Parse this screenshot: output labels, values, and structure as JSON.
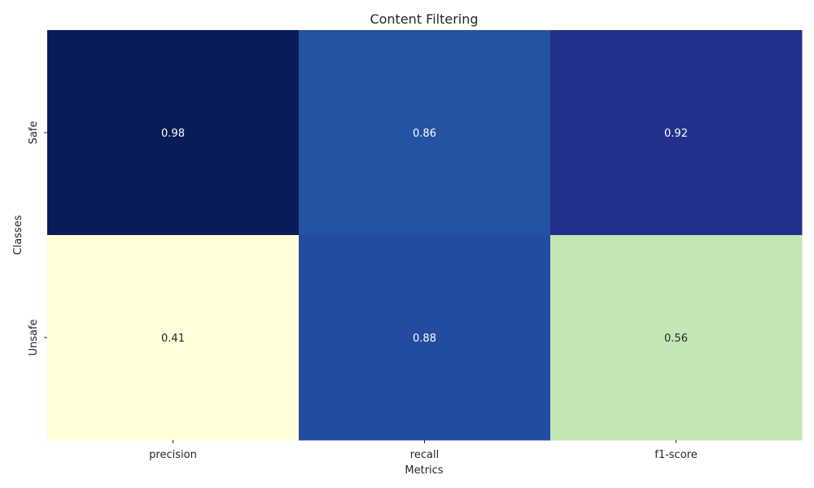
{
  "chart_data": {
    "type": "heatmap",
    "title": "Content Filtering",
    "xlabel": "Metrics",
    "ylabel": "Classes",
    "x_categories": [
      "precision",
      "recall",
      "f1-score"
    ],
    "y_categories": [
      "Safe",
      "Unsafe"
    ],
    "values": [
      [
        0.98,
        0.86,
        0.92
      ],
      [
        0.41,
        0.88,
        0.56
      ]
    ],
    "value_format": "0.00",
    "colormap": "YlGnBu",
    "colorbar": false,
    "cell_colors": [
      [
        "#081d58",
        "#2353a1",
        "#22308c"
      ],
      [
        "#ffffd9",
        "#234b9f",
        "#c4e6b4"
      ]
    ],
    "annotation_text_colors": [
      [
        "#ffffff",
        "#ffffff",
        "#ffffff"
      ],
      [
        "#262626",
        "#ffffff",
        "#262626"
      ]
    ]
  }
}
